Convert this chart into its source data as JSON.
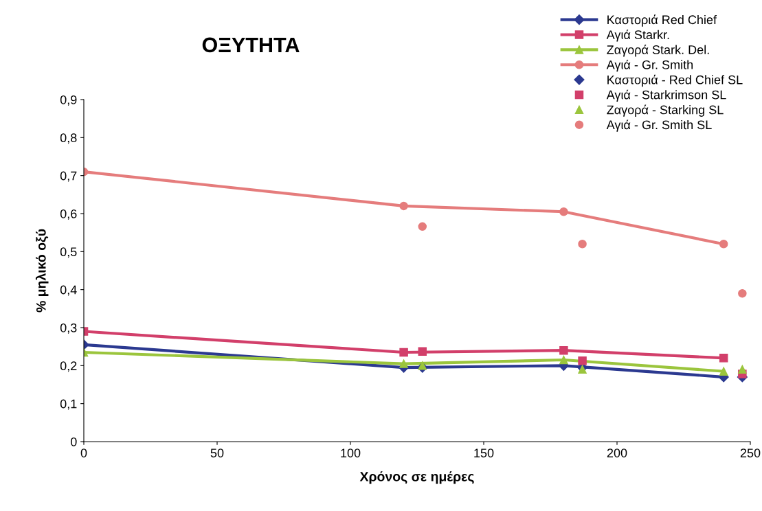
{
  "chart_data": {
    "type": "line",
    "title": "ΟΞΥΤΗΤΑ",
    "xlabel": "Χρόνος σε ημέρες",
    "ylabel": "% μηλικό οξύ",
    "xlim": [
      0,
      250
    ],
    "xticks": [
      0,
      50,
      100,
      150,
      200,
      250
    ],
    "ylim": [
      0,
      0.9
    ],
    "yticks": [
      {
        "value": 0,
        "label": "0"
      },
      {
        "value": 0.1,
        "label": "0,1"
      },
      {
        "value": 0.2,
        "label": "0,2"
      },
      {
        "value": 0.3,
        "label": "0,3"
      },
      {
        "value": 0.4,
        "label": "0,4"
      },
      {
        "value": 0.5,
        "label": "0,5"
      },
      {
        "value": 0.6,
        "label": "0,6"
      },
      {
        "value": 0.7,
        "label": "0,7"
      },
      {
        "value": 0.8,
        "label": "0,8"
      },
      {
        "value": 0.9,
        "label": "0,9"
      }
    ],
    "grid": false,
    "legend": "top right",
    "series": [
      {
        "name": "Καστοριά Red Chief",
        "marker": "diamond",
        "color": "#2b3990",
        "x": [
          0,
          120,
          180,
          240
        ],
        "values": [
          0.255,
          0.195,
          0.2,
          0.17
        ]
      },
      {
        "name": "Αγιά Starkr.",
        "marker": "square",
        "color": "#d23f6a",
        "x": [
          0,
          120,
          180,
          240
        ],
        "values": [
          0.29,
          0.235,
          0.24,
          0.22
        ]
      },
      {
        "name": "Ζαγορά Stark. Del.",
        "marker": "triangle",
        "color": "#9bc53d",
        "x": [
          0,
          120,
          180,
          240
        ],
        "values": [
          0.235,
          0.205,
          0.215,
          0.185
        ]
      },
      {
        "name": "Αγιά - Gr. Smith",
        "marker": "circle",
        "color": "#e57c7c",
        "x": [
          0,
          120,
          180,
          240
        ],
        "values": [
          0.71,
          0.62,
          0.605,
          0.52
        ]
      },
      {
        "name": "Καστοριά - Red Chief SL",
        "type": "scatter",
        "marker": "diamond",
        "color": "#2b3990",
        "x": [
          127,
          187,
          247
        ],
        "values": [
          0.195,
          0.195,
          0.17
        ]
      },
      {
        "name": "Αγιά - Starkrimson SL",
        "type": "scatter",
        "marker": "square",
        "color": "#d23f6a",
        "x": [
          127,
          187,
          247
        ],
        "values": [
          0.237,
          0.213,
          0.178
        ]
      },
      {
        "name": "Ζαγορά - Starking SL",
        "type": "scatter",
        "marker": "triangle",
        "color": "#9bc53d",
        "x": [
          127,
          187,
          247
        ],
        "values": [
          0.2,
          0.19,
          0.19
        ]
      },
      {
        "name": "Αγιά - Gr. Smith SL",
        "type": "scatter",
        "marker": "circle",
        "color": "#e57c7c",
        "x": [
          127,
          187,
          247
        ],
        "values": [
          0.566,
          0.52,
          0.39
        ]
      }
    ]
  }
}
